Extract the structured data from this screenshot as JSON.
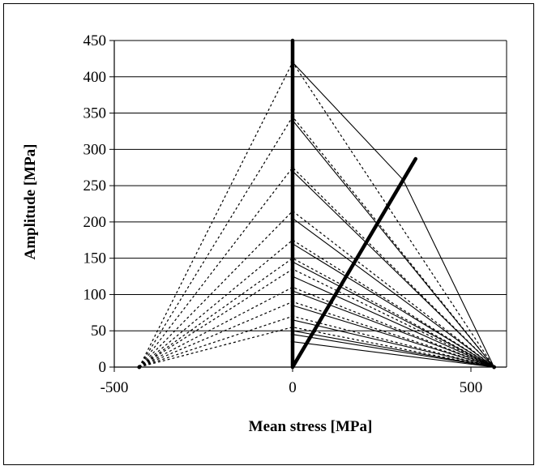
{
  "chart_data": {
    "type": "line",
    "title": "",
    "xlabel": "Mean stress [MPa]",
    "ylabel": "Amplitude [MPa]",
    "xlim": [
      -500,
      600
    ],
    "ylim": [
      0,
      450
    ],
    "x_ticks": [
      "-500",
      "0",
      "500"
    ],
    "x_tick_values": [
      -500,
      0,
      500
    ],
    "y_ticks": [
      "0",
      "50",
      "100",
      "150",
      "200",
      "250",
      "300",
      "350",
      "400",
      "450"
    ],
    "y_tick_values": [
      0,
      50,
      100,
      150,
      200,
      250,
      300,
      350,
      400,
      450
    ],
    "grid": "horizontal",
    "legend": "none",
    "series": [
      {
        "style": "dashed",
        "x": [
          -430,
          0,
          565
        ],
        "y": [
          0,
          420,
          0
        ]
      },
      {
        "style": "solid",
        "x": [
          0,
          310,
          565
        ],
        "y": [
          420,
          258,
          0
        ]
      },
      {
        "style": "dashed",
        "x": [
          -430,
          0,
          565
        ],
        "y": [
          0,
          345,
          0
        ]
      },
      {
        "style": "solid",
        "x": [
          0,
          565
        ],
        "y": [
          340,
          0
        ]
      },
      {
        "style": "dashed",
        "x": [
          -430,
          0,
          565
        ],
        "y": [
          0,
          275,
          0
        ]
      },
      {
        "style": "solid",
        "x": [
          0,
          565
        ],
        "y": [
          270,
          0
        ]
      },
      {
        "style": "dashed",
        "x": [
          -430,
          0,
          565
        ],
        "y": [
          0,
          215,
          0
        ]
      },
      {
        "style": "solid",
        "x": [
          0,
          565
        ],
        "y": [
          205,
          0
        ]
      },
      {
        "style": "dashed",
        "x": [
          -430,
          0,
          565
        ],
        "y": [
          0,
          175,
          0
        ]
      },
      {
        "style": "solid",
        "x": [
          0,
          565
        ],
        "y": [
          170,
          0
        ]
      },
      {
        "style": "dashed",
        "x": [
          -430,
          0,
          565
        ],
        "y": [
          0,
          150,
          0
        ]
      },
      {
        "style": "solid",
        "x": [
          0,
          565
        ],
        "y": [
          145,
          0
        ]
      },
      {
        "style": "dashed",
        "x": [
          -430,
          0,
          565
        ],
        "y": [
          0,
          135,
          0
        ]
      },
      {
        "style": "solid",
        "x": [
          0,
          565
        ],
        "y": [
          125,
          0
        ]
      },
      {
        "style": "dashed",
        "x": [
          -430,
          0,
          565
        ],
        "y": [
          0,
          110,
          0
        ]
      },
      {
        "style": "solid",
        "x": [
          0,
          565
        ],
        "y": [
          105,
          0
        ]
      },
      {
        "style": "dashed",
        "x": [
          -430,
          0,
          565
        ],
        "y": [
          0,
          90,
          0
        ]
      },
      {
        "style": "solid",
        "x": [
          0,
          565
        ],
        "y": [
          85,
          0
        ]
      },
      {
        "style": "dashed",
        "x": [
          -430,
          0,
          565
        ],
        "y": [
          0,
          70,
          0
        ]
      },
      {
        "style": "solid",
        "x": [
          0,
          565
        ],
        "y": [
          65,
          0
        ]
      },
      {
        "style": "dashed",
        "x": [
          -430,
          0,
          565
        ],
        "y": [
          0,
          55,
          0
        ]
      },
      {
        "style": "solid",
        "x": [
          0,
          565
        ],
        "y": [
          50,
          0
        ]
      },
      {
        "style": "solid",
        "x": [
          0,
          565
        ],
        "y": [
          45,
          0
        ]
      },
      {
        "style": "solid",
        "x": [
          0,
          565
        ],
        "y": [
          35,
          0
        ]
      },
      {
        "style": "bold",
        "x": [
          0,
          345
        ],
        "y": [
          0,
          287
        ]
      },
      {
        "style": "bold",
        "x": [
          0,
          0
        ],
        "y": [
          0,
          450
        ]
      }
    ]
  }
}
